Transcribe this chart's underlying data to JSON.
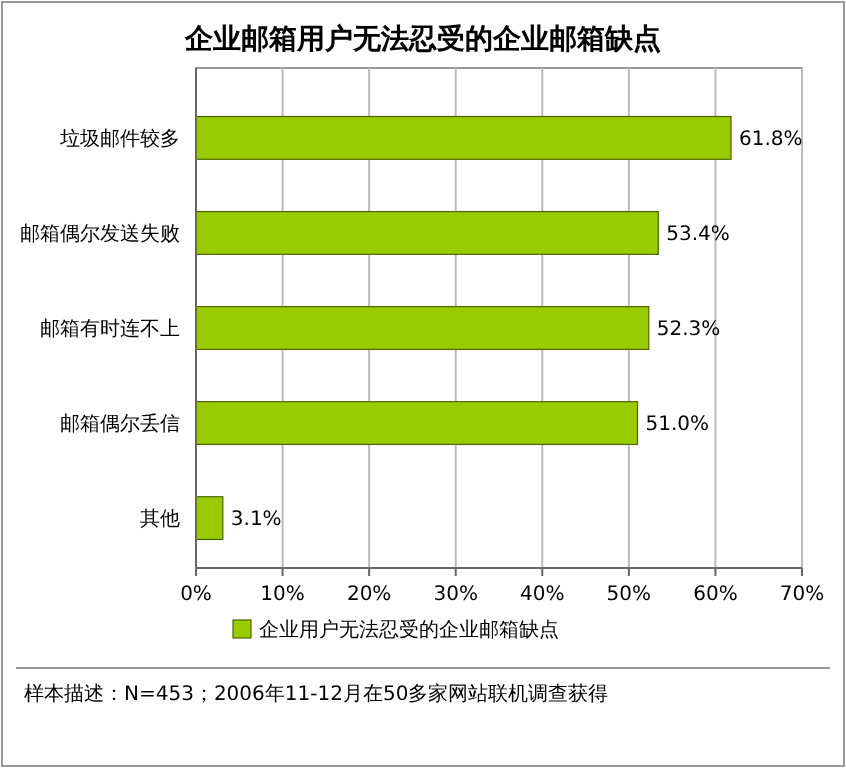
{
  "chart_data": {
    "type": "bar",
    "orientation": "horizontal",
    "title": "企业邮箱用户无法忍受的企业邮箱缺点",
    "categories": [
      "垃圾邮件较多",
      "邮箱偶尔发送失败",
      "邮箱有时连不上",
      "邮箱偶尔丢信",
      "其他"
    ],
    "series": [
      {
        "name": "企业用户无法忍受的企业邮箱缺点",
        "color": "#99cc00",
        "values": [
          61.8,
          53.4,
          52.3,
          51.0,
          3.1
        ],
        "value_labels": [
          "61.8%",
          "53.4%",
          "52.3%",
          "51.0%",
          "3.1%"
        ]
      }
    ],
    "xlim": [
      0,
      70
    ],
    "xticks": [
      {
        "value": 0,
        "label": "0%"
      },
      {
        "value": 10,
        "label": "10%"
      },
      {
        "value": 20,
        "label": "20%"
      },
      {
        "value": 30,
        "label": "30%"
      },
      {
        "value": 40,
        "label": "40%"
      },
      {
        "value": 50,
        "label": "50%"
      },
      {
        "value": 60,
        "label": "60%"
      },
      {
        "value": 70,
        "label": "70%"
      }
    ],
    "grid": "x",
    "legend": "bottom",
    "annotations": [
      "样本描述：N=453；2006年11-12月在50多家网站联机调查获得"
    ]
  }
}
